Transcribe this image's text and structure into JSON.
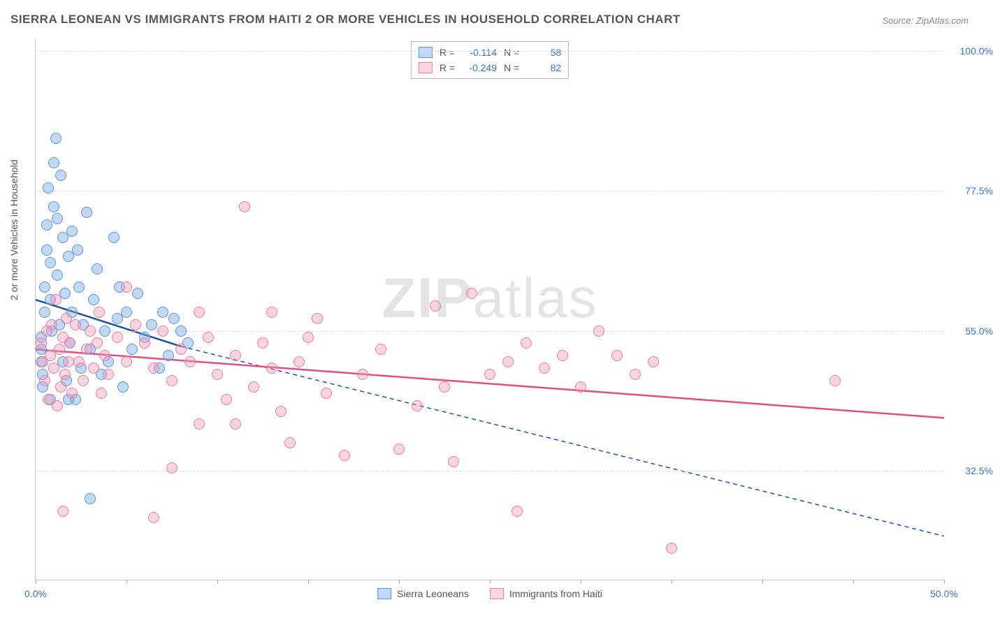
{
  "title": "SIERRA LEONEAN VS IMMIGRANTS FROM HAITI 2 OR MORE VEHICLES IN HOUSEHOLD CORRELATION CHART",
  "source": "Source: ZipAtlas.com",
  "ylabel": "2 or more Vehicles in Household",
  "watermark_a": "ZIP",
  "watermark_b": "atlas",
  "chart": {
    "type": "scatter",
    "background_color": "#ffffff",
    "grid_color": "#dddddd",
    "axis_color": "#cccccc",
    "label_color": "#555555",
    "value_color": "#3b6fd6",
    "label_fontsize": 14,
    "title_fontsize": 17,
    "xlim": [
      0,
      50
    ],
    "ylim": [
      15,
      102
    ],
    "yticks": [
      {
        "v": 32.5,
        "label": "32.5%"
      },
      {
        "v": 55.0,
        "label": "55.0%"
      },
      {
        "v": 77.5,
        "label": "77.5%"
      },
      {
        "v": 100.0,
        "label": "100.0%"
      }
    ],
    "xticks_major": [
      0,
      50
    ],
    "xtick_labels": [
      {
        "v": 0,
        "label": "0.0%"
      },
      {
        "v": 50,
        "label": "50.0%"
      }
    ],
    "xticks_minor": [
      5,
      10,
      15,
      20,
      25,
      30,
      35,
      40,
      45
    ],
    "series": [
      {
        "name": "Sierra Leoneans",
        "fill": "rgba(120,170,230,0.45)",
        "stroke": "#5e94d6",
        "marker_radius": 8,
        "trend": {
          "x1": 0,
          "y1": 60,
          "x2": 8,
          "y2": 52.5,
          "color": "#1f4fa8",
          "width": 2.5,
          "solid_until_x": 8,
          "dash_to_x": 50,
          "dash_to_y": 22
        },
        "R": "-0.114",
        "N": "58",
        "points": [
          [
            0.3,
            54
          ],
          [
            0.3,
            52
          ],
          [
            0.3,
            50
          ],
          [
            0.4,
            48
          ],
          [
            0.4,
            46
          ],
          [
            0.5,
            62
          ],
          [
            0.5,
            58
          ],
          [
            0.6,
            72
          ],
          [
            0.6,
            68
          ],
          [
            0.7,
            78
          ],
          [
            0.8,
            66
          ],
          [
            0.8,
            60
          ],
          [
            0.9,
            55
          ],
          [
            1.0,
            82
          ],
          [
            1.0,
            75
          ],
          [
            1.1,
            86
          ],
          [
            1.2,
            73
          ],
          [
            1.2,
            64
          ],
          [
            1.3,
            56
          ],
          [
            1.4,
            80
          ],
          [
            1.5,
            70
          ],
          [
            1.5,
            50
          ],
          [
            1.6,
            61
          ],
          [
            1.7,
            47
          ],
          [
            1.8,
            67
          ],
          [
            1.9,
            53
          ],
          [
            2.0,
            71
          ],
          [
            2.0,
            58
          ],
          [
            2.2,
            44
          ],
          [
            2.4,
            62
          ],
          [
            2.5,
            49
          ],
          [
            2.6,
            56
          ],
          [
            2.8,
            74
          ],
          [
            3.0,
            52
          ],
          [
            3.2,
            60
          ],
          [
            3.4,
            65
          ],
          [
            3.6,
            48
          ],
          [
            3.8,
            55
          ],
          [
            4.0,
            50
          ],
          [
            4.3,
            70
          ],
          [
            4.5,
            57
          ],
          [
            4.8,
            46
          ],
          [
            5.0,
            58
          ],
          [
            5.3,
            52
          ],
          [
            5.6,
            61
          ],
          [
            6.0,
            54
          ],
          [
            6.4,
            56
          ],
          [
            6.8,
            49
          ],
          [
            7.0,
            58
          ],
          [
            7.3,
            51
          ],
          [
            7.6,
            57
          ],
          [
            8.0,
            55
          ],
          [
            8.4,
            53
          ],
          [
            3.0,
            28
          ],
          [
            1.8,
            44
          ],
          [
            2.3,
            68
          ],
          [
            4.6,
            62
          ],
          [
            0.8,
            44
          ]
        ]
      },
      {
        "name": "Immigrants from Haiti",
        "fill": "rgba(240,150,180,0.40)",
        "stroke": "#e87da2",
        "marker_radius": 8,
        "trend": {
          "x1": 0,
          "y1": 52,
          "x2": 50,
          "y2": 41,
          "color": "#e64b87",
          "width": 2.5
        },
        "R": "-0.249",
        "N": "82",
        "points": [
          [
            0.3,
            53
          ],
          [
            0.4,
            50
          ],
          [
            0.5,
            47
          ],
          [
            0.6,
            55
          ],
          [
            0.7,
            44
          ],
          [
            0.8,
            51
          ],
          [
            0.9,
            56
          ],
          [
            1.0,
            49
          ],
          [
            1.1,
            60
          ],
          [
            1.2,
            43
          ],
          [
            1.3,
            52
          ],
          [
            1.4,
            46
          ],
          [
            1.5,
            54
          ],
          [
            1.6,
            48
          ],
          [
            1.7,
            57
          ],
          [
            1.8,
            50
          ],
          [
            1.9,
            53
          ],
          [
            2.0,
            45
          ],
          [
            2.2,
            56
          ],
          [
            2.4,
            50
          ],
          [
            2.6,
            47
          ],
          [
            2.8,
            52
          ],
          [
            3.0,
            55
          ],
          [
            3.2,
            49
          ],
          [
            3.4,
            53
          ],
          [
            3.6,
            45
          ],
          [
            3.8,
            51
          ],
          [
            4.0,
            48
          ],
          [
            4.5,
            54
          ],
          [
            5.0,
            50
          ],
          [
            5.5,
            56
          ],
          [
            6.0,
            53
          ],
          [
            6.5,
            49
          ],
          [
            7.0,
            55
          ],
          [
            7.5,
            47
          ],
          [
            8.0,
            52
          ],
          [
            8.5,
            50
          ],
          [
            9.0,
            58
          ],
          [
            9.5,
            54
          ],
          [
            10.0,
            48
          ],
          [
            10.5,
            44
          ],
          [
            11.0,
            51
          ],
          [
            11.5,
            75
          ],
          [
            12.0,
            46
          ],
          [
            12.5,
            53
          ],
          [
            13.0,
            58
          ],
          [
            13.5,
            42
          ],
          [
            14.0,
            37
          ],
          [
            14.5,
            50
          ],
          [
            15.0,
            54
          ],
          [
            16.0,
            45
          ],
          [
            17.0,
            35
          ],
          [
            18.0,
            48
          ],
          [
            19.0,
            52
          ],
          [
            20.0,
            36
          ],
          [
            21.0,
            43
          ],
          [
            22.0,
            59
          ],
          [
            22.5,
            46
          ],
          [
            23.0,
            34
          ],
          [
            24.0,
            61
          ],
          [
            25.0,
            48
          ],
          [
            26.0,
            50
          ],
          [
            26.5,
            26
          ],
          [
            27.0,
            53
          ],
          [
            28.0,
            49
          ],
          [
            29.0,
            51
          ],
          [
            30.0,
            46
          ],
          [
            31.0,
            55
          ],
          [
            32.0,
            51
          ],
          [
            33.0,
            48
          ],
          [
            34.0,
            50
          ],
          [
            35.0,
            20
          ],
          [
            7.5,
            33
          ],
          [
            6.5,
            25
          ],
          [
            1.5,
            26
          ],
          [
            44.0,
            47
          ],
          [
            3.5,
            58
          ],
          [
            5.0,
            62
          ],
          [
            9.0,
            40
          ],
          [
            11.0,
            40
          ],
          [
            13.0,
            49
          ],
          [
            15.5,
            57
          ]
        ]
      }
    ]
  },
  "legend_labels": {
    "R": "R =",
    "N": "N ="
  }
}
